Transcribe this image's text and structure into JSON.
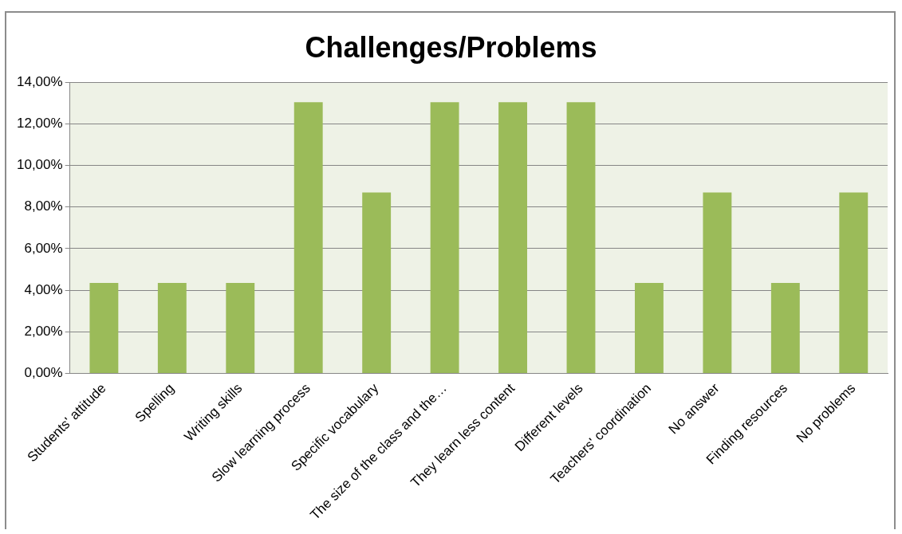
{
  "chart_data": {
    "type": "bar",
    "title": "Challenges/Problems",
    "categories": [
      "Students' attitude",
      "Spelling",
      "Writing skills",
      "Slow learning process",
      "Specific vocabulary",
      "The size of the class and the…",
      "They learn less content",
      "Different levels",
      "Teachers' coordination",
      "No answer",
      "Finding resources",
      "No problems"
    ],
    "values": [
      4.35,
      4.35,
      4.35,
      13.04,
      8.7,
      13.04,
      13.04,
      13.04,
      4.35,
      8.7,
      4.35,
      8.7
    ],
    "color": "#9bbb59",
    "ylim": [
      0,
      14
    ],
    "yticks": [
      {
        "value": 0,
        "label": "0,00%"
      },
      {
        "value": 2,
        "label": "2,00%"
      },
      {
        "value": 4,
        "label": "4,00%"
      },
      {
        "value": 6,
        "label": "6,00%"
      },
      {
        "value": 8,
        "label": "8,00%"
      },
      {
        "value": 10,
        "label": "10,00%"
      },
      {
        "value": 12,
        "label": "12,00%"
      },
      {
        "value": 14,
        "label": "14,00%"
      }
    ],
    "grid": "y",
    "legend": false
  }
}
